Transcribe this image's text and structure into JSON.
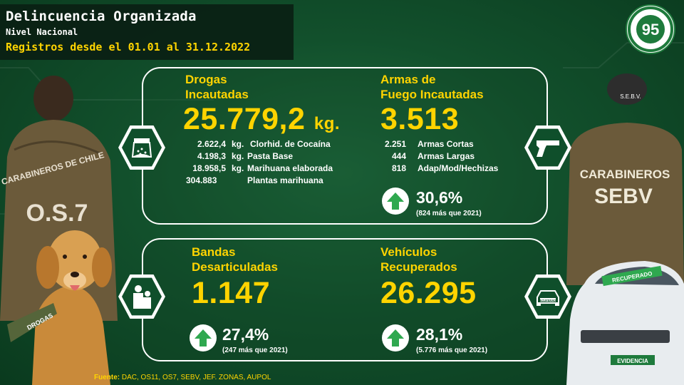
{
  "header": {
    "title": "Delincuencia Organizada",
    "subtitle": "Nivel Nacional",
    "range": "Registros desde el 01.01 al 31.12.2022"
  },
  "badge": {
    "number": "95",
    "ring_text": "CARABINEROS DE CHILE",
    "year_left": "1927",
    "year_right": "2022"
  },
  "drugs": {
    "label_line1": "Drogas",
    "label_line2": "Incautadas",
    "total": "25.779,2",
    "unit": "kg.",
    "icon": "drug-bag-icon",
    "items": [
      {
        "value": "2.622,4",
        "unit": "kg.",
        "name": "Clorhid. de Cocaína"
      },
      {
        "value": "4.198,3",
        "unit": "kg.",
        "name": "Pasta Base"
      },
      {
        "value": "18.958,5",
        "unit": "kg.",
        "name": "Marihuana elaborada"
      },
      {
        "value": "304.883",
        "unit": "",
        "name": "Plantas marihuana"
      }
    ]
  },
  "firearms": {
    "label_line1": "Armas de",
    "label_line2": "Fuego Incautadas",
    "total": "3.513",
    "icon": "pistol-icon",
    "items": [
      {
        "value": "2.251",
        "name": "Armas Cortas"
      },
      {
        "value": "444",
        "name": "Armas Largas"
      },
      {
        "value": "818",
        "name": "Adap/Mod/Hechizas"
      }
    ],
    "change_pct": "30,6%",
    "change_note": "(824 más que 2021)"
  },
  "gangs": {
    "label_line1": "Bandas",
    "label_line2": "Desarticuladas",
    "total": "1.147",
    "icon": "arrested-people-icon",
    "change_pct": "27,4%",
    "change_note": "(247 más que 2021)"
  },
  "vehicles": {
    "label_line1": "Vehículos",
    "label_line2": "Recuperados",
    "total": "26.295",
    "icon": "recovered-car-icon",
    "car_tag": "RECUPERADO",
    "change_pct": "28,1%",
    "change_note": "(5.776 más que 2021)"
  },
  "photo_text": {
    "officer_left_back": "CARABINEROS DE CHILE",
    "officer_left_unit": "O.S.7",
    "dog_vest": "DROGAS",
    "officer_right_shoulder": "S.E.B.V.",
    "officer_right_back1": "CARABINEROS",
    "officer_right_back2": "SEBV",
    "car_windshield": "RECUPERADO",
    "car_plate": "EVIDENCIA"
  },
  "source": {
    "label": "Fuente:",
    "text": "DAC, OS11, OS7, SEBV, JEF. ZONAS, AUPOL"
  },
  "colors": {
    "accent": "#ffd400",
    "green_dark": "#0f4f2b",
    "up_arrow": "#2fa84f"
  }
}
